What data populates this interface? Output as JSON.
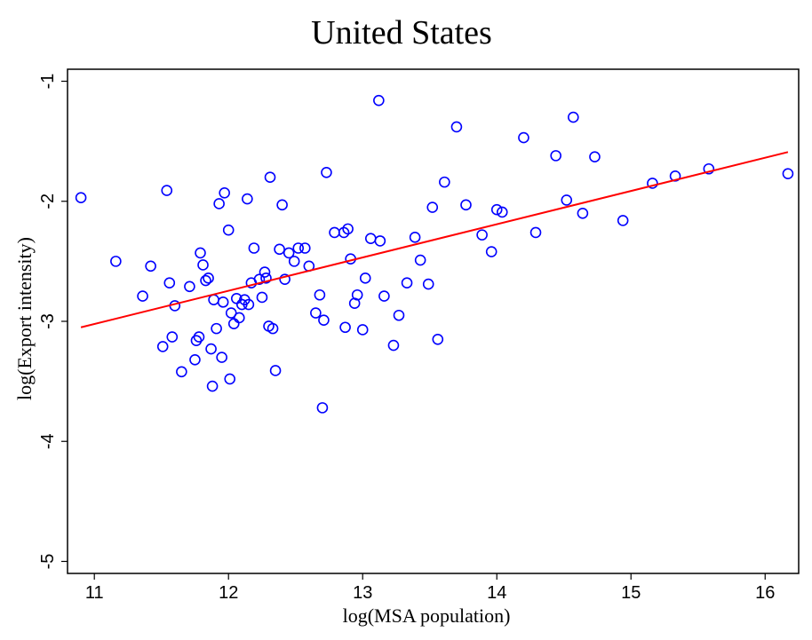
{
  "chart_data": {
    "type": "scatter",
    "title": "United States",
    "xlabel": "log(MSA population)",
    "ylabel": "log(Export intensity)",
    "xlim": [
      10.8,
      16.25
    ],
    "ylim": [
      -5.1,
      -0.9
    ],
    "xticks": [
      11,
      12,
      13,
      14,
      15,
      16
    ],
    "yticks": [
      -1,
      -2,
      -3,
      -4,
      -5
    ],
    "grid": false,
    "colors": {
      "points": "#0000ff",
      "fit_line": "#ff0000",
      "frame": "#000000"
    },
    "fit_line": {
      "x": [
        10.9,
        16.17
      ],
      "y": [
        -3.05,
        -1.59
      ]
    },
    "points": [
      {
        "x": 10.9,
        "y": -1.97
      },
      {
        "x": 11.16,
        "y": -2.5
      },
      {
        "x": 11.36,
        "y": -2.79
      },
      {
        "x": 11.42,
        "y": -2.54
      },
      {
        "x": 11.51,
        "y": -3.21
      },
      {
        "x": 11.54,
        "y": -1.91
      },
      {
        "x": 11.56,
        "y": -2.68
      },
      {
        "x": 11.58,
        "y": -3.13
      },
      {
        "x": 11.6,
        "y": -2.87
      },
      {
        "x": 11.65,
        "y": -3.42
      },
      {
        "x": 11.71,
        "y": -2.71
      },
      {
        "x": 11.75,
        "y": -3.32
      },
      {
        "x": 11.76,
        "y": -3.16
      },
      {
        "x": 11.78,
        "y": -3.13
      },
      {
        "x": 11.79,
        "y": -2.43
      },
      {
        "x": 11.81,
        "y": -2.53
      },
      {
        "x": 11.83,
        "y": -2.66
      },
      {
        "x": 11.85,
        "y": -2.64
      },
      {
        "x": 11.87,
        "y": -3.23
      },
      {
        "x": 11.88,
        "y": -3.54
      },
      {
        "x": 11.89,
        "y": -2.82
      },
      {
        "x": 11.91,
        "y": -3.06
      },
      {
        "x": 11.93,
        "y": -2.02
      },
      {
        "x": 11.95,
        "y": -3.3
      },
      {
        "x": 11.96,
        "y": -2.84
      },
      {
        "x": 11.97,
        "y": -1.93
      },
      {
        "x": 12.0,
        "y": -2.24
      },
      {
        "x": 12.01,
        "y": -3.48
      },
      {
        "x": 12.02,
        "y": -2.93
      },
      {
        "x": 12.04,
        "y": -3.02
      },
      {
        "x": 12.06,
        "y": -2.81
      },
      {
        "x": 12.08,
        "y": -2.97
      },
      {
        "x": 12.1,
        "y": -2.86
      },
      {
        "x": 12.12,
        "y": -2.82
      },
      {
        "x": 12.14,
        "y": -1.98
      },
      {
        "x": 12.15,
        "y": -2.86
      },
      {
        "x": 12.17,
        "y": -2.68
      },
      {
        "x": 12.19,
        "y": -2.39
      },
      {
        "x": 12.23,
        "y": -2.65
      },
      {
        "x": 12.25,
        "y": -2.8
      },
      {
        "x": 12.27,
        "y": -2.59
      },
      {
        "x": 12.28,
        "y": -2.64
      },
      {
        "x": 12.3,
        "y": -3.04
      },
      {
        "x": 12.31,
        "y": -1.8
      },
      {
        "x": 12.33,
        "y": -3.06
      },
      {
        "x": 12.35,
        "y": -3.41
      },
      {
        "x": 12.38,
        "y": -2.4
      },
      {
        "x": 12.4,
        "y": -2.03
      },
      {
        "x": 12.42,
        "y": -2.65
      },
      {
        "x": 12.45,
        "y": -2.43
      },
      {
        "x": 12.49,
        "y": -2.5
      },
      {
        "x": 12.52,
        "y": -2.39
      },
      {
        "x": 12.57,
        "y": -2.39
      },
      {
        "x": 12.6,
        "y": -2.54
      },
      {
        "x": 12.65,
        "y": -2.93
      },
      {
        "x": 12.68,
        "y": -2.78
      },
      {
        "x": 12.7,
        "y": -3.72
      },
      {
        "x": 12.71,
        "y": -2.99
      },
      {
        "x": 12.73,
        "y": -1.76
      },
      {
        "x": 12.79,
        "y": -2.26
      },
      {
        "x": 12.86,
        "y": -2.26
      },
      {
        "x": 12.87,
        "y": -3.05
      },
      {
        "x": 12.89,
        "y": -2.23
      },
      {
        "x": 12.91,
        "y": -2.48
      },
      {
        "x": 12.94,
        "y": -2.85
      },
      {
        "x": 12.96,
        "y": -2.78
      },
      {
        "x": 13.0,
        "y": -3.07
      },
      {
        "x": 13.02,
        "y": -2.64
      },
      {
        "x": 13.06,
        "y": -2.31
      },
      {
        "x": 13.12,
        "y": -1.16
      },
      {
        "x": 13.13,
        "y": -2.33
      },
      {
        "x": 13.16,
        "y": -2.79
      },
      {
        "x": 13.23,
        "y": -3.2
      },
      {
        "x": 13.27,
        "y": -2.95
      },
      {
        "x": 13.33,
        "y": -2.68
      },
      {
        "x": 13.39,
        "y": -2.3
      },
      {
        "x": 13.43,
        "y": -2.49
      },
      {
        "x": 13.49,
        "y": -2.69
      },
      {
        "x": 13.52,
        "y": -2.05
      },
      {
        "x": 13.56,
        "y": -3.15
      },
      {
        "x": 13.61,
        "y": -1.84
      },
      {
        "x": 13.7,
        "y": -1.38
      },
      {
        "x": 13.77,
        "y": -2.03
      },
      {
        "x": 13.89,
        "y": -2.28
      },
      {
        "x": 13.96,
        "y": -2.42
      },
      {
        "x": 14.0,
        "y": -2.07
      },
      {
        "x": 14.04,
        "y": -2.09
      },
      {
        "x": 14.2,
        "y": -1.47
      },
      {
        "x": 14.29,
        "y": -2.26
      },
      {
        "x": 14.44,
        "y": -1.62
      },
      {
        "x": 14.52,
        "y": -1.99
      },
      {
        "x": 14.57,
        "y": -1.3
      },
      {
        "x": 14.64,
        "y": -2.1
      },
      {
        "x": 14.73,
        "y": -1.63
      },
      {
        "x": 14.94,
        "y": -2.16
      },
      {
        "x": 15.16,
        "y": -1.85
      },
      {
        "x": 15.33,
        "y": -1.79
      },
      {
        "x": 15.58,
        "y": -1.73
      },
      {
        "x": 16.17,
        "y": -1.77
      }
    ]
  }
}
